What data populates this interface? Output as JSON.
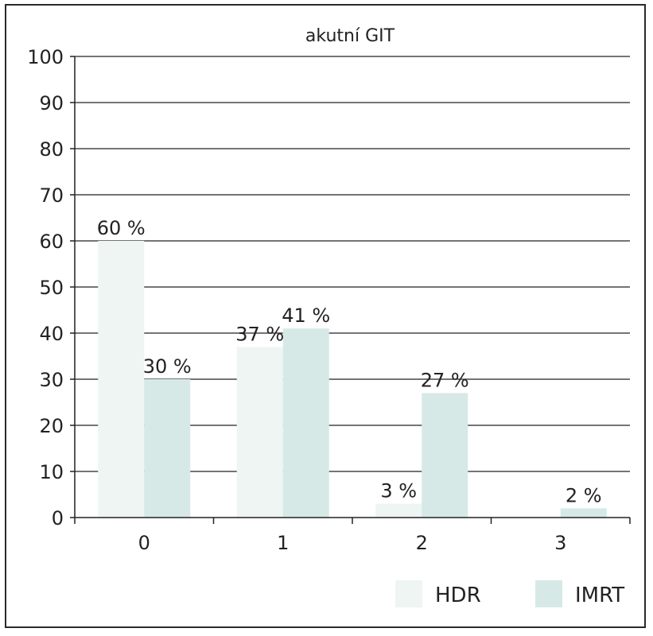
{
  "chart_data": {
    "type": "bar",
    "title": "akutní GIT",
    "xlabel": "",
    "ylabel": "",
    "categories": [
      "0",
      "1",
      "2",
      "3"
    ],
    "ylim": [
      0,
      100
    ],
    "yticks": [
      0,
      10,
      20,
      30,
      40,
      50,
      60,
      70,
      80,
      90,
      100
    ],
    "grid": true,
    "legend_position": "bottom-right",
    "series": [
      {
        "name": "HDR",
        "values": [
          60,
          37,
          3,
          0
        ],
        "labels": [
          "60 %",
          "37 %",
          "3 %",
          ""
        ],
        "color": "#eef5f3"
      },
      {
        "name": "IMRT",
        "values": [
          30,
          41,
          27,
          2
        ],
        "labels": [
          "30 %",
          "41 %",
          "27 %",
          "2 %"
        ],
        "color": "#d6e9e6"
      }
    ]
  }
}
